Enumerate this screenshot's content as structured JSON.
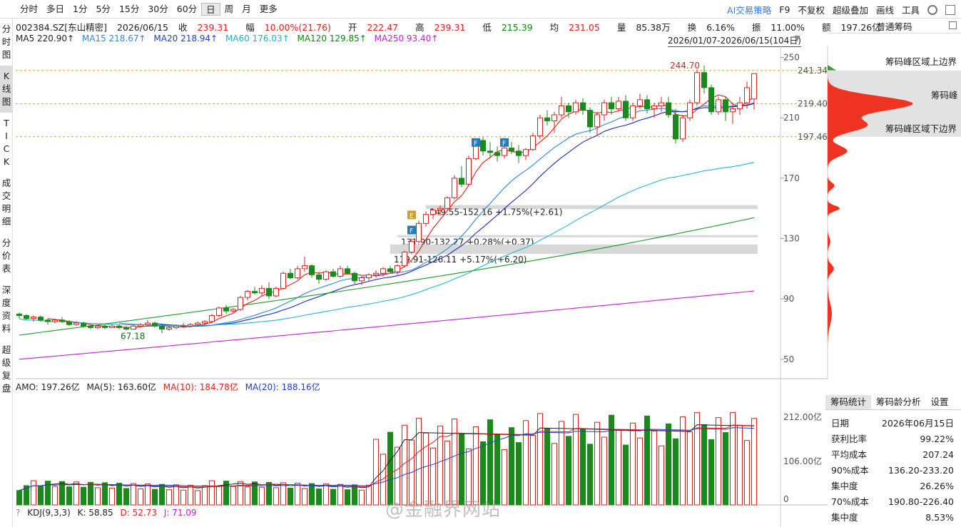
{
  "toolbar": {
    "periods": [
      "分时",
      "多日",
      "1分",
      "5分",
      "15分",
      "30分",
      "60分",
      "日",
      "周",
      "月",
      "更多"
    ],
    "active_period": "日",
    "right_items": [
      "AI交易策略",
      "F9",
      "不复权",
      "超级叠加",
      "画线",
      "工具"
    ]
  },
  "sidebar": [
    {
      "label": "分\n时\n图"
    },
    {
      "label": "K\n线\n图"
    },
    {
      "label": "T\nI\nC\nK"
    },
    {
      "label": "成\n交\n明\n细"
    },
    {
      "label": "分\n价\n表"
    },
    {
      "label": "深\n度\n资\n料"
    },
    {
      "label": "超\n级\n复\n盘"
    }
  ],
  "quote": {
    "code": "002384.SZ[东山精密]",
    "date": "2026/06/15",
    "close_label": "收",
    "close": "239.31",
    "change_label": "幅",
    "change": "10.00%(21.76)",
    "open_label": "开",
    "open": "222.47",
    "high_label": "高",
    "high": "239.31",
    "low_label": "低",
    "low": "215.39",
    "avg_label": "均",
    "avg": "231.05",
    "vol_label": "量",
    "vol": "85.38万",
    "turnover_label": "换",
    "turnover": "6.16%",
    "amplitude_label": "振",
    "amplitude": "11.00%",
    "amount_label": "额",
    "amount": "197.26亿"
  },
  "ma": {
    "ma5": "MA5 220.90↑",
    "ma15": "MA15 218.67↑",
    "ma20": "MA20 218.94↑",
    "ma60": "MA60 176.03↑",
    "ma120": "MA120 129.85↑",
    "ma250": "MA250 93.40↑",
    "colors": {
      "ma5": "#e0201a",
      "ma15": "#2a8ad8",
      "ma20": "#1a2ab8",
      "ma60": "#22b8d0",
      "ma120": "#1a9a2a",
      "ma250": "#c020d0"
    }
  },
  "range_text": "2026/01/07-2026/06/15(104日)",
  "right_panel": {
    "title": "普通筹码",
    "peak_upper_label": "筹码峰区域上边界",
    "peak_label": "筹码峰",
    "peak_lower_label": "筹码峰区域下边界",
    "price_upper": "241.34",
    "price_peak": "219.40",
    "price_lower": "197.46",
    "tabs": [
      "筹码统计",
      "筹码龄分析",
      "设置"
    ],
    "stats": [
      {
        "k": "日期",
        "v": "2026年06月15日"
      },
      {
        "k": "获利比率",
        "v": "99.22%"
      },
      {
        "k": "平均成本",
        "v": "207.24"
      },
      {
        "k": "90%成本",
        "v": "136.20-233.20"
      },
      {
        "k": "集中度",
        "v": "26.26%"
      },
      {
        "k": "70%成本",
        "v": "190.80-226.40"
      },
      {
        "k": "集中度",
        "v": "8.53%"
      }
    ]
  },
  "annotations": {
    "high_mark": "244.70",
    "low_mark": "67.18",
    "gap1": "149.55-152.16 +1.75%(+2.61)",
    "gap2": "131.90-132.27 +0.28%(+0.37)",
    "gap3": "119.91-126.11 +5.17%(+6.20)"
  },
  "sub_chart": {
    "amo": "AMO: 197.26亿",
    "ma5": "MA(5): 163.60亿",
    "ma10": "MA(10): 184.78亿",
    "ma20": "MA(20): 188.16亿",
    "axis": [
      "212.00亿",
      "106.00亿",
      "0"
    ]
  },
  "kdj": {
    "label": "KDJ(9,3,3)",
    "k": "K: 58.85",
    "d": "D: 52.73",
    "j": "J: 71.09"
  },
  "watermark": "@金融界网站",
  "chart_data": {
    "type": "candlestick",
    "title": "002384.SZ[东山精密] 日K",
    "y_axis_ticks": [
      250,
      210,
      170,
      130,
      90,
      50
    ],
    "ylim": [
      40,
      255
    ],
    "candles_ohlc": [
      [
        80,
        81,
        77,
        79
      ],
      [
        79,
        80,
        76,
        77
      ],
      [
        77,
        79,
        75,
        78
      ],
      [
        78,
        79,
        75,
        76
      ],
      [
        76,
        77,
        73,
        75
      ],
      [
        75,
        77,
        74,
        76
      ],
      [
        76,
        78,
        74,
        75
      ],
      [
        75,
        76,
        72,
        73
      ],
      [
        73,
        75,
        72,
        74
      ],
      [
        74,
        75,
        71,
        72
      ],
      [
        72,
        73,
        70,
        71
      ],
      [
        71,
        73,
        70,
        72
      ],
      [
        72,
        73,
        70,
        71
      ],
      [
        71,
        73,
        71,
        72
      ],
      [
        72,
        73,
        70,
        71
      ],
      [
        71,
        72,
        69,
        70
      ],
      [
        70,
        73,
        70,
        72
      ],
      [
        72,
        74,
        71,
        73
      ],
      [
        73,
        76,
        72,
        74
      ],
      [
        74,
        75,
        71,
        72
      ],
      [
        72,
        73,
        67.18,
        70
      ],
      [
        70,
        72,
        69,
        71
      ],
      [
        71,
        73,
        70,
        72
      ],
      [
        72,
        74,
        71,
        72
      ],
      [
        72,
        74,
        71,
        73
      ],
      [
        73,
        75,
        72,
        74
      ],
      [
        74,
        76,
        73,
        75
      ],
      [
        75,
        80,
        74,
        79
      ],
      [
        79,
        85,
        78,
        84
      ],
      [
        84,
        86,
        80,
        82
      ],
      [
        82,
        84,
        81,
        83
      ],
      [
        83,
        92,
        82,
        91
      ],
      [
        91,
        96,
        89,
        95
      ],
      [
        95,
        98,
        93,
        94
      ],
      [
        94,
        99,
        92,
        97
      ],
      [
        97,
        101,
        90,
        92
      ],
      [
        92,
        98,
        91,
        97
      ],
      [
        97,
        108,
        96,
        107
      ],
      [
        107,
        110,
        103,
        104
      ],
      [
        104,
        112,
        103,
        110
      ],
      [
        110,
        118,
        108,
        112
      ],
      [
        112,
        113,
        104,
        106
      ],
      [
        106,
        108,
        100,
        103
      ],
      [
        103,
        109,
        102,
        108
      ],
      [
        108,
        110,
        104,
        105
      ],
      [
        105,
        112,
        104,
        110
      ],
      [
        110,
        112,
        106,
        107
      ],
      [
        107,
        108,
        100,
        102
      ],
      [
        102,
        105,
        99,
        104
      ],
      [
        104,
        107,
        102,
        106
      ],
      [
        106,
        109,
        104,
        107
      ],
      [
        107,
        111,
        105,
        110
      ],
      [
        110,
        112,
        107,
        108
      ],
      [
        108,
        113,
        106,
        112
      ],
      [
        112,
        122,
        111,
        121
      ],
      [
        121,
        130,
        120,
        128
      ],
      [
        128,
        142,
        127,
        140
      ],
      [
        140,
        148,
        138,
        146
      ],
      [
        146,
        150,
        143,
        149
      ],
      [
        149,
        152,
        145,
        150
      ],
      [
        150,
        158,
        149,
        157
      ],
      [
        157,
        172,
        156,
        170
      ],
      [
        170,
        178,
        164,
        166
      ],
      [
        166,
        185,
        165,
        183
      ],
      [
        183,
        196,
        182,
        195
      ],
      [
        195,
        197,
        185,
        188
      ],
      [
        188,
        194,
        183,
        187
      ],
      [
        187,
        191,
        181,
        185
      ],
      [
        185,
        192,
        183,
        190
      ],
      [
        190,
        194,
        186,
        188
      ],
      [
        188,
        192,
        180,
        185
      ],
      [
        185,
        190,
        182,
        189
      ],
      [
        189,
        200,
        188,
        198
      ],
      [
        198,
        212,
        196,
        210
      ],
      [
        210,
        215,
        205,
        208
      ],
      [
        208,
        214,
        200,
        212
      ],
      [
        212,
        224,
        210,
        218
      ],
      [
        218,
        220,
        210,
        214
      ],
      [
        214,
        222,
        212,
        220
      ],
      [
        220,
        223,
        212,
        215
      ],
      [
        215,
        217,
        200,
        204
      ],
      [
        204,
        214,
        198,
        212
      ],
      [
        212,
        222,
        208,
        220
      ],
      [
        220,
        224,
        212,
        216
      ],
      [
        216,
        224,
        214,
        221
      ],
      [
        221,
        225,
        208,
        210
      ],
      [
        210,
        220,
        208,
        218
      ],
      [
        218,
        226,
        216,
        222
      ],
      [
        222,
        225,
        213,
        216
      ],
      [
        216,
        220,
        210,
        218
      ],
      [
        218,
        224,
        214,
        220
      ],
      [
        220,
        224,
        210,
        212
      ],
      [
        212,
        216,
        193,
        196
      ],
      [
        196,
        212,
        194,
        210
      ],
      [
        210,
        222,
        208,
        220
      ],
      [
        220,
        242,
        218,
        240
      ],
      [
        240,
        244.7,
        226,
        230
      ],
      [
        230,
        232,
        212,
        214
      ],
      [
        214,
        224,
        212,
        222
      ],
      [
        222,
        224,
        208,
        214
      ],
      [
        214,
        220,
        206,
        216
      ],
      [
        216,
        224,
        212,
        220
      ],
      [
        220,
        234,
        216,
        230
      ],
      [
        222.47,
        239.31,
        215.39,
        239.31
      ]
    ],
    "gap_zones": [
      [
        149.55,
        152.16
      ],
      [
        131.9,
        132.27
      ],
      [
        119.91,
        126.11
      ]
    ],
    "volume_axis": [
      "212.00亿",
      "106.00亿",
      "0"
    ],
    "chip_peak": {
      "upper": 241.34,
      "peak": 219.4,
      "lower": 197.46
    }
  }
}
